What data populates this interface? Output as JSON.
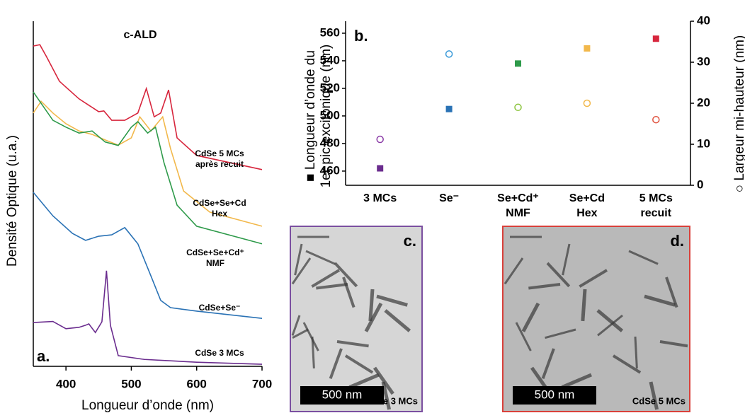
{
  "chart_data": [
    {
      "type": "line",
      "panel": "a.",
      "title": "c-ALD",
      "xlabel": "Longueur d’onde (nm)",
      "ylabel": "Densité Optique (u.a.)",
      "xlim": [
        350,
        700
      ],
      "xticks": [
        400,
        500,
        600,
        700
      ],
      "ylim": [
        0,
        100
      ],
      "series": [
        {
          "name": "CdSe 5 MCs\naprès recuit",
          "color": "#d7263d",
          "x": [
            350,
            360,
            370,
            390,
            420,
            450,
            458,
            470,
            490,
            510,
            523,
            535,
            545,
            557,
            570,
            600,
            700
          ],
          "values": [
            92.8,
            93.2,
            89.8,
            82.6,
            77.5,
            73.8,
            74,
            71.3,
            71.3,
            73.4,
            80.5,
            72.3,
            73.4,
            80.1,
            66.2,
            61.1,
            57
          ]
        },
        {
          "name": "CdSe+Se+Cd\nHex",
          "color": "#f2b84b",
          "x": [
            350,
            362,
            380,
            400,
            420,
            440,
            460,
            480,
            500,
            513,
            530,
            548,
            560,
            580,
            620,
            700
          ],
          "values": [
            73.4,
            76.8,
            73.4,
            70.3,
            68.2,
            67.2,
            65.6,
            64.1,
            66.2,
            72.3,
            68.2,
            72.3,
            63.1,
            50.8,
            44.7,
            40.6
          ]
        },
        {
          "name": "CdSe+Se+Cd⁺\nNMF",
          "color": "#2e9a4a",
          "x": [
            350,
            380,
            400,
            420,
            440,
            460,
            480,
            500,
            510,
            525,
            537,
            550,
            570,
            600,
            700
          ],
          "values": [
            79.5,
            71.3,
            69.3,
            67.6,
            68.2,
            65,
            64,
            69.3,
            70.9,
            67.6,
            69.3,
            59,
            46.7,
            40.6,
            35.5
          ]
        },
        {
          "name": "CdSe+Se⁻",
          "color": "#2a72b5",
          "x": [
            350,
            380,
            410,
            430,
            450,
            470,
            490,
            510,
            530,
            545,
            560,
            600,
            700
          ],
          "values": [
            50.4,
            43.6,
            38.5,
            36.5,
            37.7,
            38.1,
            40.2,
            35.5,
            26.2,
            19.1,
            17,
            16,
            13.9
          ]
        },
        {
          "name": "CdSe 3 MCs",
          "color": "#6a2c8e",
          "x": [
            350,
            380,
            400,
            420,
            430,
            435,
            445,
            455,
            462,
            468,
            480,
            520,
            600,
            700
          ],
          "values": [
            12.7,
            13,
            10.9,
            11.3,
            11.9,
            12.3,
            9.8,
            12.9,
            27.7,
            11.9,
            3.1,
            2,
            1.2,
            0.6
          ]
        }
      ]
    },
    {
      "type": "scatter",
      "panel": "b.",
      "ylabel": "■ Longueur d’onde du\n1er pic excitonique (nm)",
      "y2label": "○ Largeur mi-hauteur (nm)",
      "categories": [
        "3 MCs",
        "Se⁻",
        "Se+Cd⁺\nNMF",
        "Se+Cd\nHex",
        "5 MCs\nrecuit"
      ],
      "ylim": [
        449.7,
        568.7
      ],
      "yticks": [
        460,
        480,
        500,
        520,
        540,
        560
      ],
      "y2lim": [
        0,
        40
      ],
      "y2ticks": [
        0,
        10,
        20,
        30,
        40
      ],
      "series": [
        {
          "marker": "square",
          "colors": [
            "#6a2c8e",
            "#2a72b5",
            "#2e9a4a",
            "#f2b84b",
            "#d7263d"
          ],
          "values": [
            462,
            505,
            538,
            549,
            556
          ]
        },
        {
          "marker": "circle",
          "axis": "y2",
          "colors": [
            "#8a3aa6",
            "#3a9ad9",
            "#8cc43f",
            "#f2b84b",
            "#e0533f"
          ],
          "values": [
            11.2,
            32,
            19,
            20,
            16
          ]
        }
      ]
    }
  ],
  "images": [
    {
      "panel": "c.",
      "scale": "500 nm",
      "caption": "CdSe 3 MCs",
      "border": "#7b4fa0"
    },
    {
      "panel": "d.",
      "scale": "500 nm",
      "caption": "CdSe 5 MCs",
      "border": "#d9403a"
    }
  ]
}
